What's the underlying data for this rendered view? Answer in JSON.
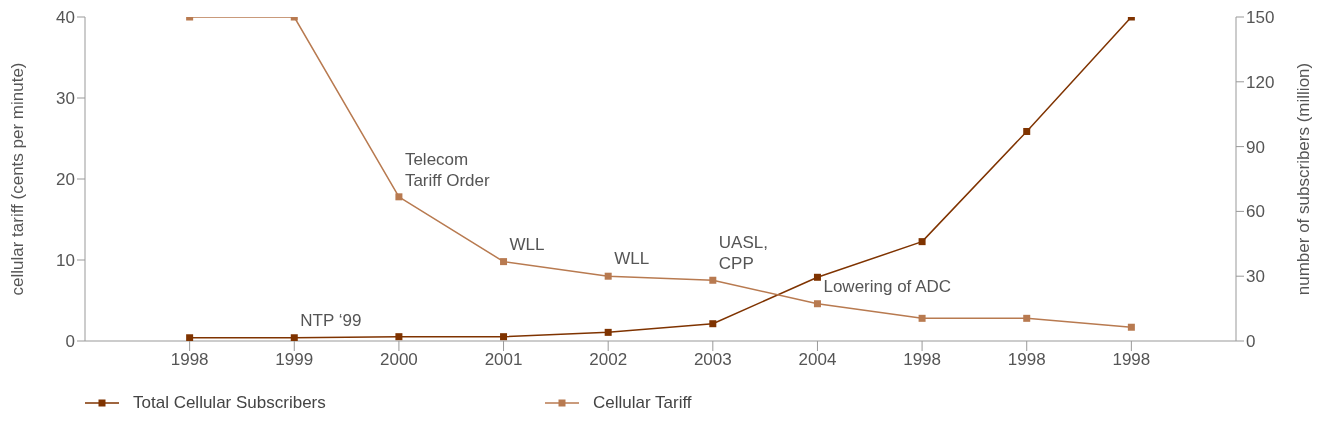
{
  "chart_data": {
    "type": "line",
    "ylabel": "cellular tariff (cents per minute)",
    "y2label": "number of subscribers (million)",
    "categories": [
      "1998",
      "1999",
      "2000",
      "2001",
      "2002",
      "2003",
      "2004",
      "1998",
      "1998",
      "1998"
    ],
    "series": [
      {
        "name": "Total Cellular Subscribers",
        "color": "#7f3300",
        "axis": "y2",
        "values": [
          1.5,
          1.5,
          2,
          2,
          4,
          8,
          29.5,
          46,
          97,
          150
        ]
      },
      {
        "name": "Cellular Tariff",
        "color": "#b87a50",
        "values": [
          40,
          40,
          17.8,
          9.8,
          8,
          7.5,
          4.6,
          2.8,
          2.8,
          1.7
        ]
      }
    ],
    "ylim": [
      0,
      40
    ],
    "yticks": [
      0,
      10,
      20,
      30,
      40
    ],
    "y2lim": [
      0,
      150
    ],
    "y2ticks": [
      0,
      30,
      60,
      90,
      120,
      150
    ],
    "annotations": [
      {
        "text": "NTP ‘99",
        "x": "1999",
        "y": 0.4
      },
      {
        "text": "Telecom\nTariff Order",
        "x": "2000",
        "y": 17.8
      },
      {
        "text": "WLL",
        "x": "2001",
        "y": 9.8
      },
      {
        "text": "WLL",
        "x": "2002",
        "y": 8
      },
      {
        "text": "UASL,\nCPP",
        "x": "2003",
        "y": 7.5
      },
      {
        "text": "Lowering of ADC",
        "x": "2004",
        "y": 4.6
      }
    ],
    "marker": "square",
    "line_style": "solid",
    "grid": false,
    "legend": "bottom"
  }
}
